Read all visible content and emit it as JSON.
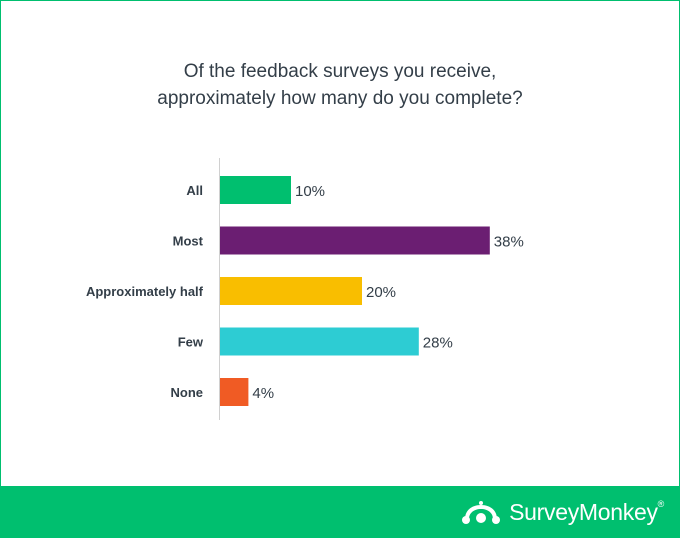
{
  "chart_data": {
    "type": "bar",
    "orientation": "horizontal",
    "title": "Of the feedback surveys you receive, approximately how many do you complete?",
    "title_lines": [
      "Of the feedback surveys you receive,",
      "approximately how many do you complete?"
    ],
    "categories": [
      "All",
      "Most",
      "Approximately half",
      "Few",
      "None"
    ],
    "values": [
      10,
      38,
      20,
      28,
      4
    ],
    "value_labels": [
      "10%",
      "38%",
      "20%",
      "28%",
      "4%"
    ],
    "colors": [
      "#00bf6f",
      "#6b1e72",
      "#f9be00",
      "#2dccd3",
      "#f05b24"
    ],
    "xlim": [
      0,
      40
    ],
    "unit": "%",
    "grid": false,
    "legend": "none"
  },
  "footer": {
    "brand": "SurveyMonkey",
    "brand_mark": "®",
    "background": "#00bf6f"
  }
}
